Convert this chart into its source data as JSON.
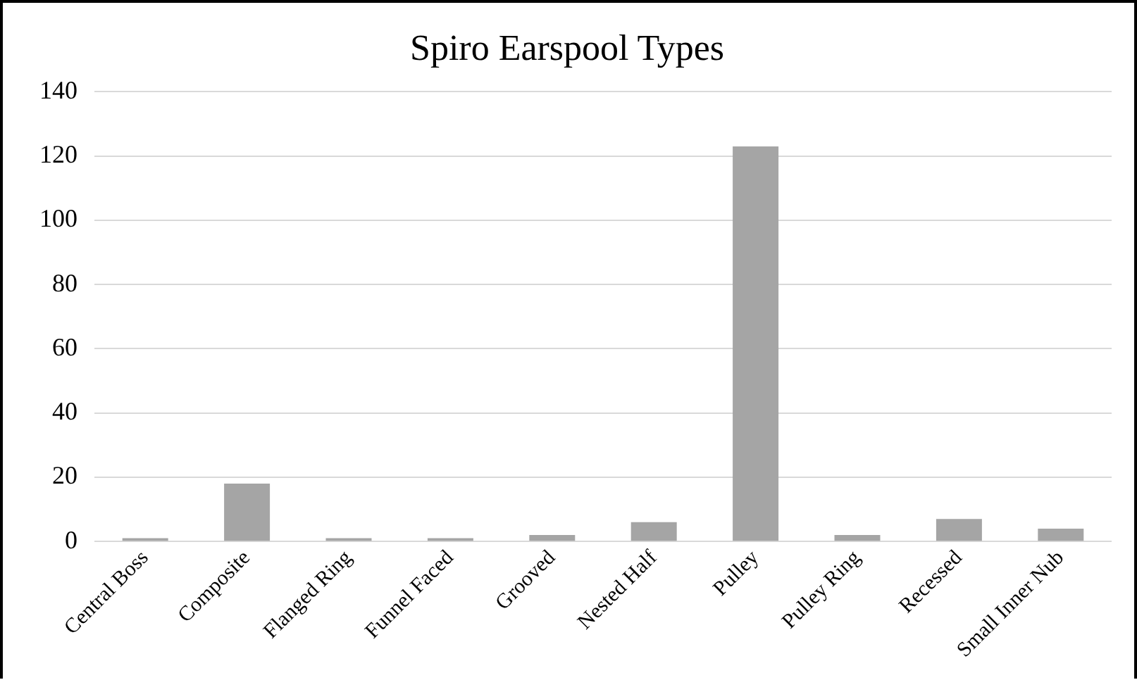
{
  "chart_data": {
    "type": "bar",
    "title": "Spiro Earspool Types",
    "categories": [
      "Central Boss",
      "Composite",
      "Flanged Ring",
      "Funnel Faced",
      "Grooved",
      "Nested Half",
      "Pulley",
      "Pulley Ring",
      "Recessed",
      "Small Inner Nub"
    ],
    "values": [
      1,
      18,
      1,
      1,
      2,
      6,
      123,
      2,
      7,
      4
    ],
    "color": "#a5a5a5",
    "ylim": [
      0,
      140
    ],
    "yticks": [
      0,
      20,
      40,
      60,
      80,
      100,
      120,
      140
    ],
    "grid": "y"
  }
}
